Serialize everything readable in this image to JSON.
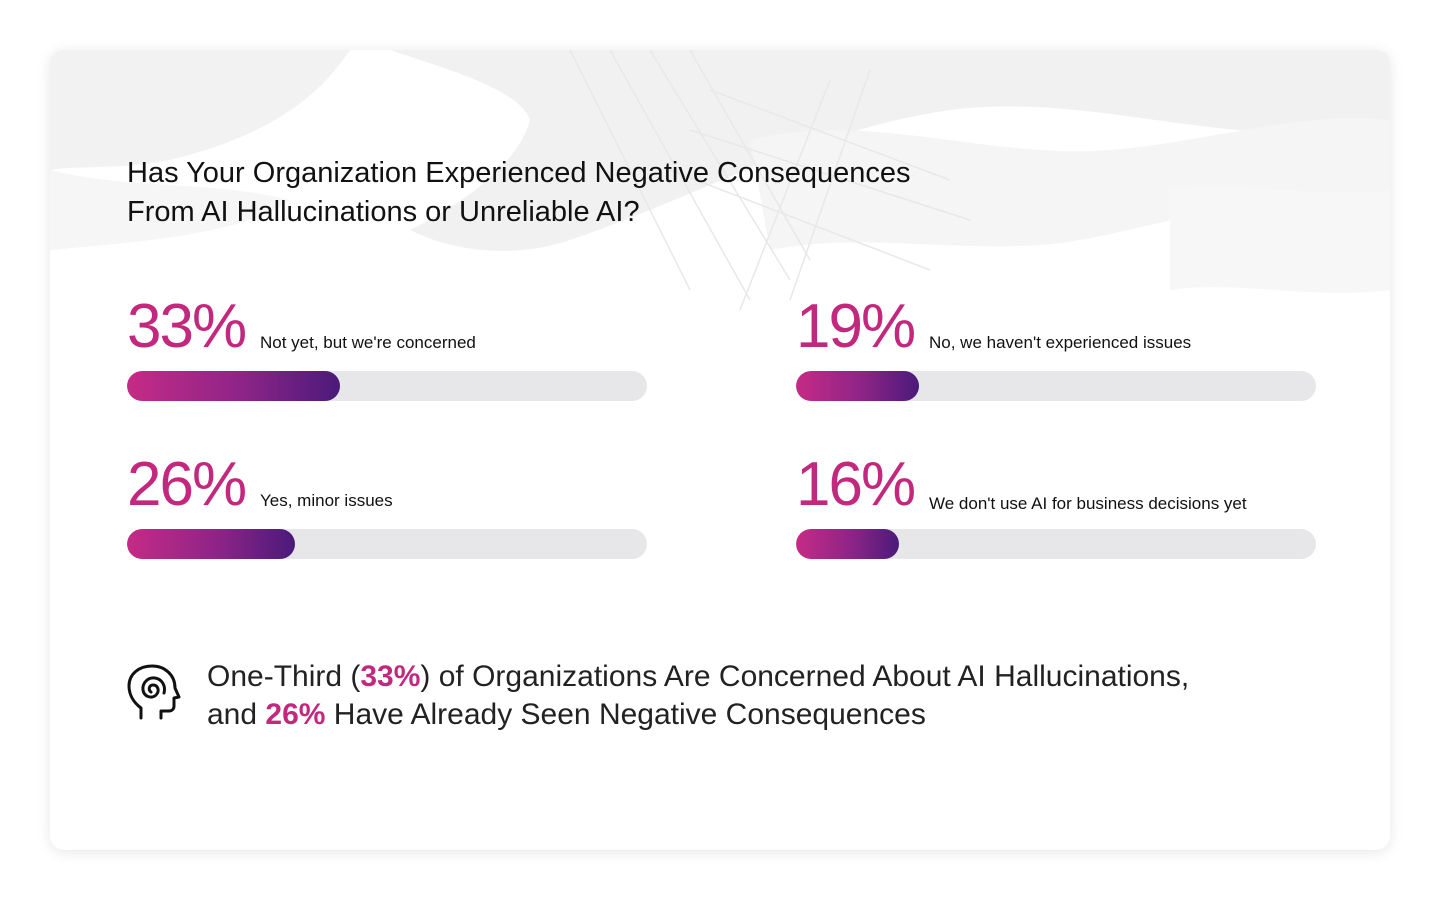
{
  "title_line1": "Has Your Organization Experienced Negative Consequences",
  "title_line2": "From AI Hallucinations or Unreliable AI?",
  "chart_data": {
    "type": "bar",
    "title": "Has Your Organization Experienced Negative Consequences From AI Hallucinations or Unreliable AI?",
    "categories": [
      "Not yet, but we're concerned",
      "No, we haven't experienced issues",
      "Yes, minor issues",
      "We don't use AI for business decisions yet"
    ],
    "values": [
      33,
      19,
      26,
      16
    ],
    "value_labels": [
      "33%",
      "19%",
      "26%",
      "16%"
    ],
    "xlim": [
      0,
      100
    ],
    "orientation": "horizontal",
    "grid": false,
    "legend": "none"
  },
  "footer": {
    "part1": "One-Third (",
    "highlight1": "33%",
    "part2": ") of Organizations Are Concerned About AI Hallucinations,",
    "part3": "and ",
    "highlight2": "26%",
    "part4": " Have Already Seen Negative Consequences",
    "icon": "head-spiral-icon"
  },
  "colors": {
    "accent": "#c2287e",
    "bar_start": "#c52b86",
    "bar_end": "#4a1a7a",
    "track": "#e7e7ea"
  }
}
